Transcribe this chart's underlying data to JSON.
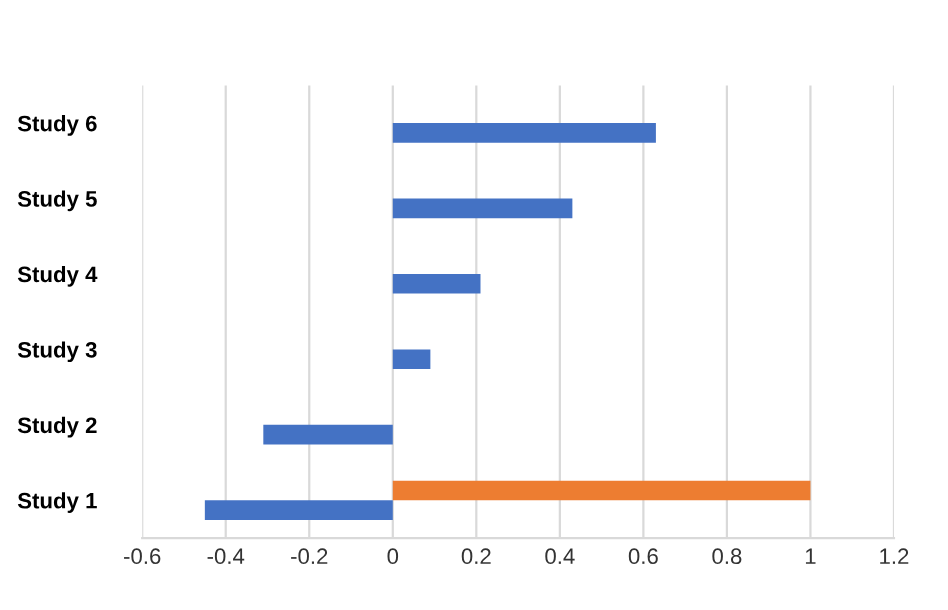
{
  "chart_data": {
    "type": "bar",
    "orientation": "horizontal",
    "categories": [
      "Study 6",
      "Study 5",
      "Study 4",
      "Study 3",
      "Study 2",
      "Study 1"
    ],
    "series": [
      {
        "color": "#4472c4",
        "values": [
          0.63,
          0.43,
          0.21,
          0.09,
          -0.31,
          -0.45
        ]
      },
      {
        "color": "#ed7d31",
        "values": [
          null,
          null,
          null,
          null,
          null,
          1
        ]
      }
    ],
    "xlim": [
      -0.6,
      1.2
    ],
    "xticks": [
      -0.6,
      -0.4,
      -0.2,
      0,
      0.2,
      0.4,
      0.6,
      0.8,
      1,
      1.2
    ],
    "grid": "x"
  }
}
